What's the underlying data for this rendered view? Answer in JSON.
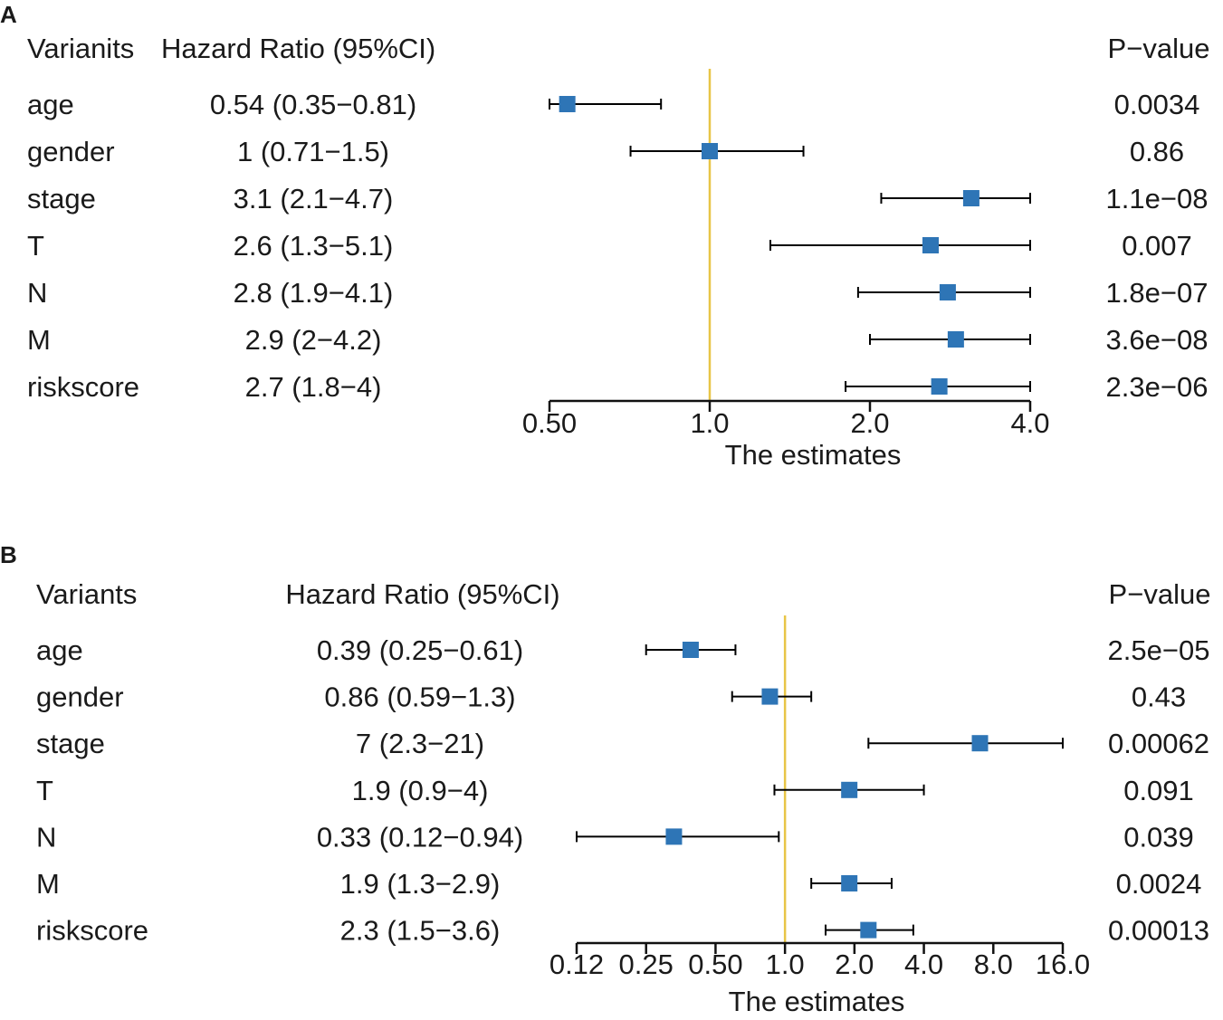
{
  "chart_data": [
    {
      "type": "forest",
      "panel": "A",
      "headers": {
        "variable": "Varianits",
        "hr": "Hazard Ratio (95%CI)",
        "p": "P−value"
      },
      "rows": [
        {
          "name": "age",
          "hr_text": "0.54 (0.35−0.81)",
          "p": "0.0034",
          "est": 0.54,
          "lo": 0.35,
          "hi": 0.81
        },
        {
          "name": "gender",
          "hr_text": "1 (0.71−1.5)",
          "p": "0.86",
          "est": 1.0,
          "lo": 0.71,
          "hi": 1.5
        },
        {
          "name": "stage",
          "hr_text": "3.1 (2.1−4.7)",
          "p": "1.1e−08",
          "est": 3.1,
          "lo": 2.1,
          "hi": 4.7
        },
        {
          "name": "T",
          "hr_text": "2.6 (1.3−5.1)",
          "p": "0.007",
          "est": 2.6,
          "lo": 1.3,
          "hi": 5.1
        },
        {
          "name": "N",
          "hr_text": "2.8 (1.9−4.1)",
          "p": "1.8e−07",
          "est": 2.8,
          "lo": 1.9,
          "hi": 4.1
        },
        {
          "name": "M",
          "hr_text": "2.9 (2−4.2)",
          "p": "3.6e−08",
          "est": 2.9,
          "lo": 2.0,
          "hi": 4.2
        },
        {
          "name": "riskscore",
          "hr_text": "2.7 (1.8−4)",
          "p": "2.3e−06",
          "est": 2.7,
          "lo": 1.8,
          "hi": 4.0
        }
      ],
      "ticks": [
        0.5,
        1,
        2,
        4
      ],
      "tick_labels": [
        "0.50",
        "1.0",
        "2.0",
        "4.0"
      ],
      "xlim": [
        0.5,
        4
      ],
      "xscale": "log2",
      "reference": 1,
      "xlabel": "The estimates"
    },
    {
      "type": "forest",
      "panel": "B",
      "headers": {
        "variable": "Variants",
        "hr": "Hazard Ratio (95%CI)",
        "p": "P−value"
      },
      "rows": [
        {
          "name": "age",
          "hr_text": "0.39 (0.25−0.61)",
          "p": "2.5e−05",
          "est": 0.39,
          "lo": 0.25,
          "hi": 0.61
        },
        {
          "name": "gender",
          "hr_text": "0.86 (0.59−1.3)",
          "p": "0.43",
          "est": 0.86,
          "lo": 0.59,
          "hi": 1.3
        },
        {
          "name": "stage",
          "hr_text": "7 (2.3−21)",
          "p": "0.00062",
          "est": 7.0,
          "lo": 2.3,
          "hi": 21
        },
        {
          "name": "T",
          "hr_text": "1.9 (0.9−4)",
          "p": "0.091",
          "est": 1.9,
          "lo": 0.9,
          "hi": 4.0
        },
        {
          "name": "N",
          "hr_text": "0.33 (0.12−0.94)",
          "p": "0.039",
          "est": 0.33,
          "lo": 0.12,
          "hi": 0.94
        },
        {
          "name": "M",
          "hr_text": "1.9 (1.3−2.9)",
          "p": "0.0024",
          "est": 1.9,
          "lo": 1.3,
          "hi": 2.9
        },
        {
          "name": "riskscore",
          "hr_text": "2.3 (1.5−3.6)",
          "p": "0.00013",
          "est": 2.3,
          "lo": 1.5,
          "hi": 3.6
        }
      ],
      "ticks": [
        0.125,
        0.25,
        0.5,
        1,
        2,
        4,
        8,
        16
      ],
      "tick_labels": [
        "0.12",
        "0.25",
        "0.50",
        "1.0",
        "2.0",
        "4.0",
        "8.0",
        "16.0"
      ],
      "xlim": [
        0.125,
        16
      ],
      "xscale": "log2",
      "reference": 1,
      "xlabel": "The estimates"
    }
  ],
  "colors": {
    "marker": "#2e75b6",
    "reference": "#e8c547",
    "axis": "#111111"
  }
}
